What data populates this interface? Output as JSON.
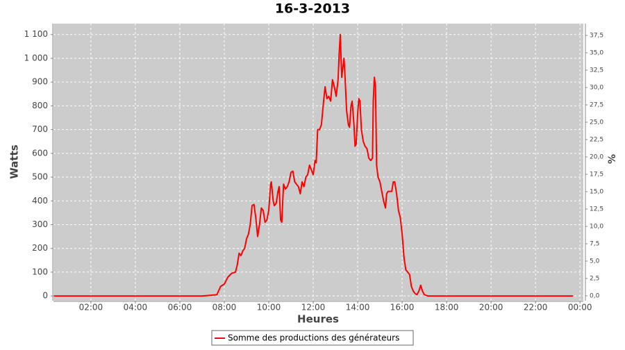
{
  "chart_data": {
    "type": "line",
    "title": "16-3-2013",
    "x_label": "Heures",
    "y_label": "Watts",
    "y2_label": "%",
    "xlim": [
      19,
      1449
    ],
    "xticks": [
      {
        "value": 120,
        "label": "02:00"
      },
      {
        "value": 240,
        "label": "04:00"
      },
      {
        "value": 360,
        "label": "06:00"
      },
      {
        "value": 480,
        "label": "08:00"
      },
      {
        "value": 600,
        "label": "10:00"
      },
      {
        "value": 720,
        "label": "12:00"
      },
      {
        "value": 840,
        "label": "14:00"
      },
      {
        "value": 960,
        "label": "16:00"
      },
      {
        "value": 1080,
        "label": "18:00"
      },
      {
        "value": 1200,
        "label": "20:00"
      },
      {
        "value": 1320,
        "label": "22:00"
      },
      {
        "value": 1440,
        "label": "00:00"
      }
    ],
    "ylim": [
      -20,
      1146
    ],
    "yticks": [
      0,
      100,
      200,
      300,
      400,
      500,
      600,
      700,
      800,
      900,
      {
        "value": 1000,
        "label": "1 000"
      },
      {
        "value": 1100,
        "label": "1 100"
      }
    ],
    "y2lim": [
      -0.7,
      39.2
    ],
    "y2ticks": [
      {
        "value": 0,
        "label": "0,0"
      },
      {
        "value": 2.5,
        "label": "2,5"
      },
      {
        "value": 5,
        "label": "5,0"
      },
      {
        "value": 7.5,
        "label": "7,5"
      },
      {
        "value": 10,
        "label": "10,0"
      },
      {
        "value": 12.5,
        "label": "12,5"
      },
      {
        "value": 15,
        "label": "15,0"
      },
      {
        "value": 17.5,
        "label": "17,5"
      },
      {
        "value": 20,
        "label": "20,0"
      },
      {
        "value": 22.5,
        "label": "22,5"
      },
      {
        "value": 25,
        "label": "25,0"
      },
      {
        "value": 27.5,
        "label": "27,5"
      },
      {
        "value": 30,
        "label": "30,0"
      },
      {
        "value": 32.5,
        "label": "32,5"
      },
      {
        "value": 35,
        "label": "35,0"
      },
      {
        "value": 37.5,
        "label": "37,5"
      }
    ],
    "grid": true,
    "legend": "bottom",
    "x": [
      20,
      420,
      460,
      470,
      480,
      490,
      500,
      510,
      515,
      520,
      525,
      530,
      535,
      540,
      545,
      550,
      555,
      560,
      565,
      570,
      575,
      580,
      585,
      590,
      595,
      600,
      605,
      607,
      612,
      615,
      620,
      625,
      628,
      632,
      635,
      640,
      645,
      650,
      655,
      660,
      665,
      670,
      675,
      680,
      685,
      690,
      695,
      700,
      705,
      710,
      715,
      720,
      725,
      728,
      732,
      737,
      742,
      748,
      752,
      757,
      762,
      767,
      772,
      777,
      782,
      787,
      790,
      793,
      797,
      800,
      803,
      806,
      810,
      815,
      818,
      822,
      825,
      830,
      833,
      836,
      840,
      843,
      846,
      850,
      855,
      860,
      865,
      870,
      875,
      880,
      882,
      885,
      888,
      891,
      895,
      900,
      905,
      910,
      915,
      918,
      922,
      928,
      932,
      936,
      940,
      945,
      950,
      955,
      960,
      965,
      970,
      975,
      980,
      985,
      990,
      995,
      1000,
      1005,
      1010,
      1015,
      1020,
      1030,
      1421
    ],
    "series": [
      {
        "name": "Somme des productions des  générateurs",
        "color": "#ff0000",
        "values": [
          0,
          0,
          5,
          40,
          50,
          80,
          95,
          100,
          130,
          180,
          170,
          190,
          200,
          240,
          260,
          300,
          380,
          385,
          330,
          250,
          300,
          370,
          360,
          310,
          320,
          360,
          470,
          480,
          400,
          380,
          390,
          440,
          460,
          320,
          310,
          470,
          450,
          460,
          480,
          520,
          525,
          480,
          470,
          460,
          430,
          480,
          460,
          500,
          510,
          550,
          530,
          510,
          570,
          560,
          700,
          700,
          720,
          820,
          880,
          830,
          840,
          820,
          910,
          880,
          840,
          910,
          1020,
          1100,
          920,
          960,
          1000,
          920,
          780,
          720,
          710,
          800,
          820,
          720,
          630,
          640,
          770,
          830,
          820,
          700,
          650,
          630,
          620,
          580,
          570,
          580,
          820,
          920,
          880,
          550,
          500,
          480,
          440,
          400,
          370,
          430,
          440,
          440,
          440,
          480,
          480,
          430,
          360,
          330,
          260,
          160,
          110,
          100,
          90,
          40,
          20,
          10,
          5,
          20,
          45,
          20,
          5,
          0,
          0
        ]
      }
    ]
  }
}
